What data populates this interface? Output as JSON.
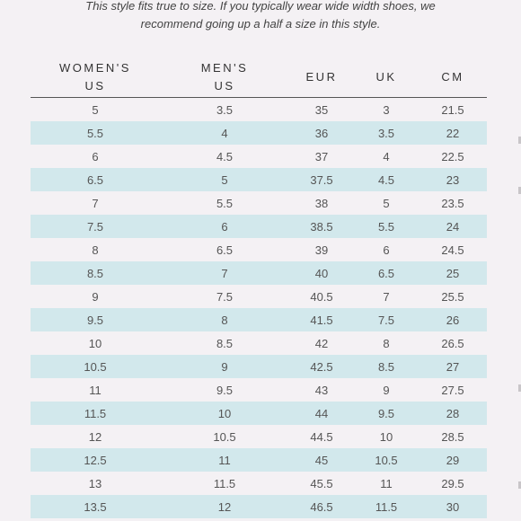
{
  "note": {
    "line1": "This style fits true to size. If you typically wear wide width shoes, we",
    "line2": "recommend going up a half a size in this style."
  },
  "table": {
    "headers": {
      "womens_line1": "WOMEN'S",
      "womens_line2": "US",
      "mens_line1": "MEN'S",
      "mens_line2": "US",
      "eur": "EUR",
      "uk": "UK",
      "cm": "CM"
    },
    "rows": [
      [
        "5",
        "3.5",
        "35",
        "3",
        "21.5"
      ],
      [
        "5.5",
        "4",
        "36",
        "3.5",
        "22"
      ],
      [
        "6",
        "4.5",
        "37",
        "4",
        "22.5"
      ],
      [
        "6.5",
        "5",
        "37.5",
        "4.5",
        "23"
      ],
      [
        "7",
        "5.5",
        "38",
        "5",
        "23.5"
      ],
      [
        "7.5",
        "6",
        "38.5",
        "5.5",
        "24"
      ],
      [
        "8",
        "6.5",
        "39",
        "6",
        "24.5"
      ],
      [
        "8.5",
        "7",
        "40",
        "6.5",
        "25"
      ],
      [
        "9",
        "7.5",
        "40.5",
        "7",
        "25.5"
      ],
      [
        "9.5",
        "8",
        "41.5",
        "7.5",
        "26"
      ],
      [
        "10",
        "8.5",
        "42",
        "8",
        "26.5"
      ],
      [
        "10.5",
        "9",
        "42.5",
        "8.5",
        "27"
      ],
      [
        "11",
        "9.5",
        "43",
        "9",
        "27.5"
      ],
      [
        "11.5",
        "10",
        "44",
        "9.5",
        "28"
      ],
      [
        "12",
        "10.5",
        "44.5",
        "10",
        "28.5"
      ],
      [
        "12.5",
        "11",
        "45",
        "10.5",
        "29"
      ],
      [
        "13",
        "11.5",
        "45.5",
        "11",
        "29.5"
      ],
      [
        "13.5",
        "12",
        "46.5",
        "11.5",
        "30"
      ]
    ]
  },
  "colors": {
    "background": "#f4f1f4",
    "stripe": "#d2e8ec",
    "text": "#555555",
    "rule": "#555555"
  }
}
